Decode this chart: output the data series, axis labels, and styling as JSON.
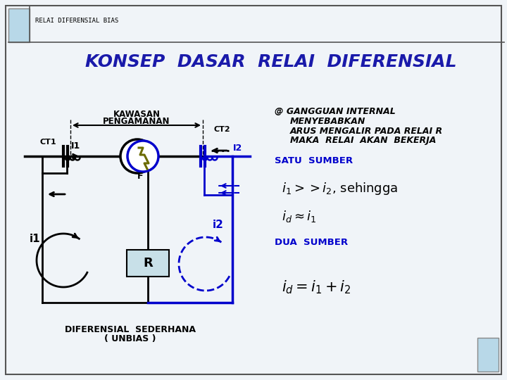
{
  "title": "KONSEP  DASAR  RELAI  DIFERENSIAL",
  "header": "RELAI DIFERENSIAL BIAS",
  "bg_color": "#f0f4f8",
  "title_color": "#1a1aaa",
  "black": "#000000",
  "dark_blue": "#0000cc",
  "olive": "#6b6b00",
  "light_blue_rect": "#b8d8e8",
  "r_box_color": "#c8e0e8",
  "footer_text1": "DIFERENSIAL  SEDERHANA",
  "footer_text2": "( UNBIAS )",
  "right_texts": [
    "@ GANGGUAN INTERNAL",
    "MENYEBABKAN",
    "ARUS MENGALIR PADA RELAI R",
    "MAKA  RELAI  AKAN  BEKERJA"
  ],
  "satu_sumber": "SATU  SUMBER",
  "dua_sumber": "DUA  SUMBER"
}
